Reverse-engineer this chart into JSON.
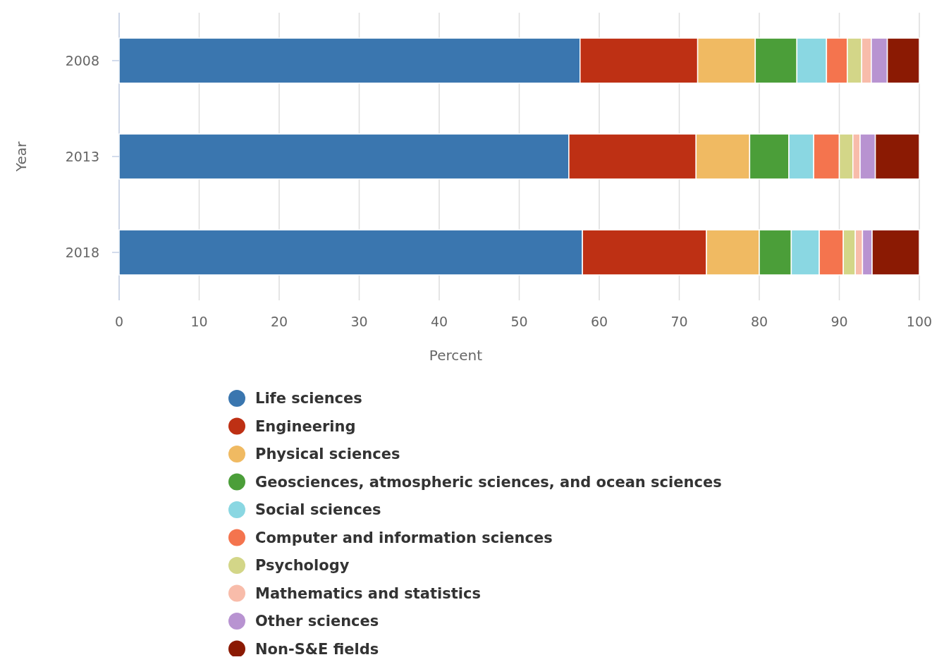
{
  "chart_data": {
    "type": "bar",
    "orientation": "horizontal",
    "stacked": true,
    "categories": [
      "2008",
      "2013",
      "2018"
    ],
    "xlabel": "Percent",
    "ylabel": "Year",
    "xlim": [
      0,
      100
    ],
    "xticks": [
      0,
      10,
      20,
      30,
      40,
      50,
      60,
      70,
      80,
      90,
      100
    ],
    "grid": "x",
    "legend": "bottom",
    "series": [
      {
        "name": "Life sciences",
        "color": "#3a76af",
        "values": [
          57.6,
          56.2,
          57.9
        ]
      },
      {
        "name": "Engineering",
        "color": "#be3014",
        "values": [
          14.7,
          15.9,
          15.5
        ]
      },
      {
        "name": "Physical sciences",
        "color": "#f0ba62",
        "values": [
          7.2,
          6.7,
          6.6
        ]
      },
      {
        "name": "Geosciences, atmospheric sciences, and ocean sciences",
        "color": "#4b9e39",
        "values": [
          5.2,
          4.9,
          4.0
        ]
      },
      {
        "name": "Social sciences",
        "color": "#8ad7e2",
        "values": [
          3.7,
          3.1,
          3.5
        ]
      },
      {
        "name": "Computer and information sciences",
        "color": "#f4744e",
        "values": [
          2.6,
          3.2,
          3.0
        ]
      },
      {
        "name": "Psychology",
        "color": "#d3d688",
        "values": [
          1.8,
          1.7,
          1.5
        ]
      },
      {
        "name": "Mathematics and statistics",
        "color": "#f8bcaa",
        "values": [
          1.2,
          0.9,
          0.9
        ]
      },
      {
        "name": "Other sciences",
        "color": "#b893d1",
        "values": [
          2.0,
          1.9,
          1.2
        ]
      },
      {
        "name": "Non-S&E fields",
        "color": "#8b1a03",
        "values": [
          4.0,
          5.5,
          5.9
        ]
      }
    ]
  }
}
